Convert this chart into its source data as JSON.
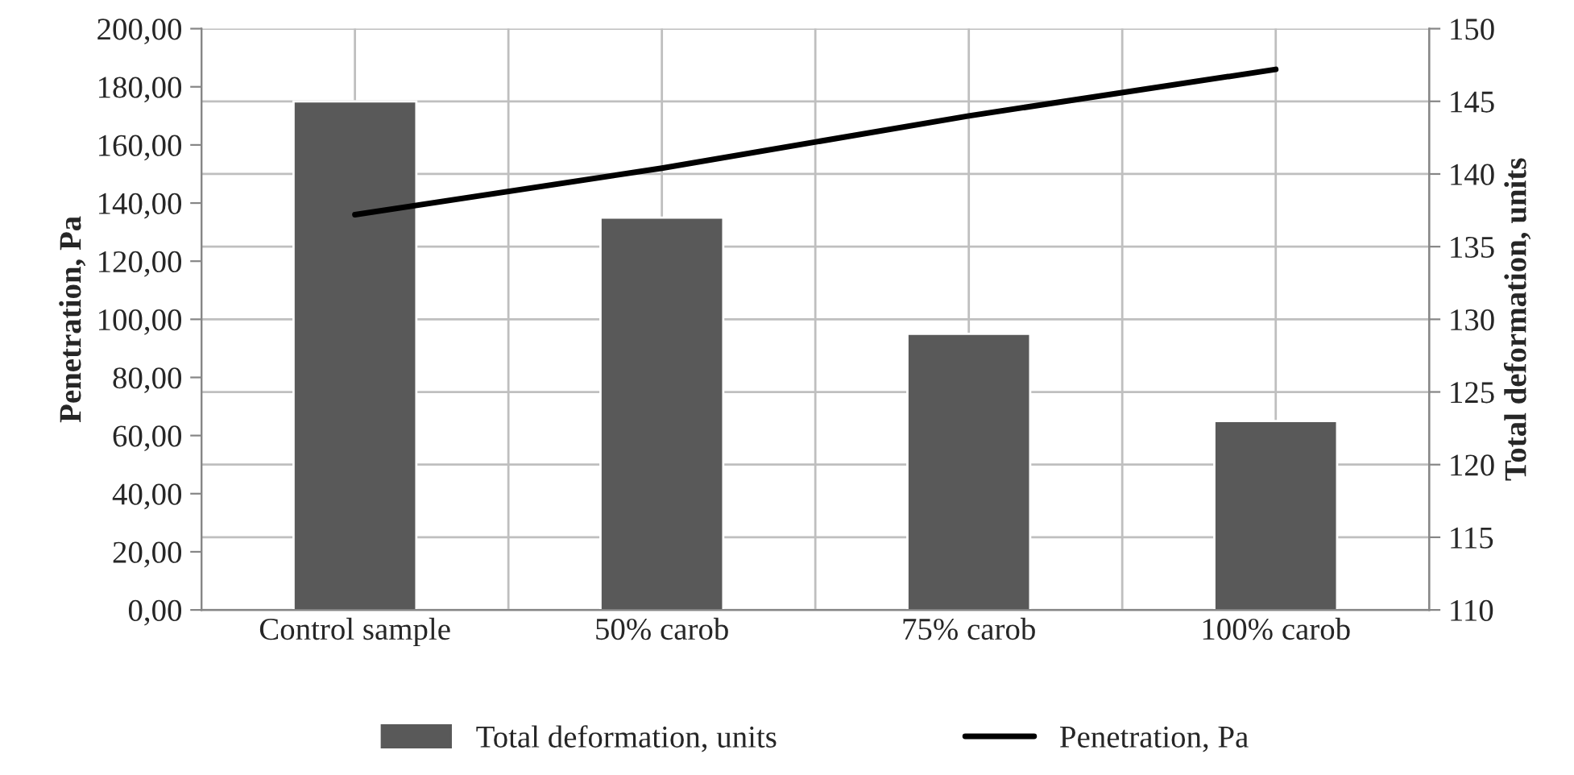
{
  "chart_data": {
    "type": "bar",
    "categories": [
      "Control sample",
      "50% carob",
      "75% carob",
      "100% carob"
    ],
    "ylabel": "Penetration, Pa",
    "y2label": "Total deformation, units",
    "series": [
      {
        "name": "Total deformation, units",
        "axis": "y2",
        "color": "#595959",
        "values": [
          145,
          137,
          129,
          123
        ]
      },
      {
        "name": "Penetration, Pa",
        "type": "line",
        "axis": "y",
        "color": "#000000",
        "values": [
          136,
          152,
          170,
          186
        ]
      }
    ],
    "ylim": [
      0,
      200
    ],
    "yticks": [
      {
        "value": 0,
        "label": "0,00"
      },
      {
        "value": 20,
        "label": "20,00"
      },
      {
        "value": 40,
        "label": "40,00"
      },
      {
        "value": 60,
        "label": "60,00"
      },
      {
        "value": 80,
        "label": "80,00"
      },
      {
        "value": 100,
        "label": "100,00"
      },
      {
        "value": 120,
        "label": "120,00"
      },
      {
        "value": 140,
        "label": "140,00"
      },
      {
        "value": 160,
        "label": "160,00"
      },
      {
        "value": 180,
        "label": "180,00"
      },
      {
        "value": 200,
        "label": "200,00"
      }
    ],
    "y2lim": [
      110,
      150
    ],
    "y2ticks": [
      110,
      115,
      120,
      125,
      130,
      135,
      140,
      145,
      150
    ],
    "grid": true,
    "legend": "bottom",
    "marker": "none",
    "line_style": "solid"
  }
}
